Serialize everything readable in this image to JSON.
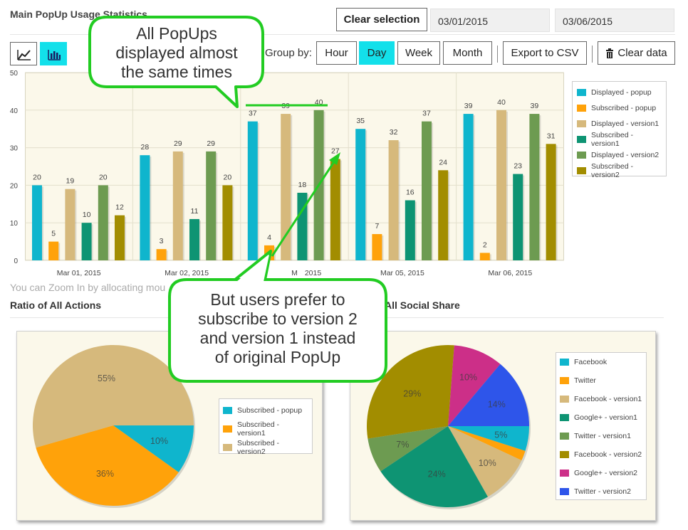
{
  "header": {
    "title": "Main PopUp Usage Statistics",
    "clear_selection": "Clear selection",
    "date_from": "03/01/2015",
    "date_to": "03/06/2015"
  },
  "toolbar": {
    "line_icon": "line-chart-icon",
    "bar_icon": "bar-chart-icon",
    "group_by_label": "Group by:",
    "groups": [
      "Hour",
      "Day",
      "Week",
      "Month"
    ],
    "active_group": "Day",
    "export_csv": "Export to CSV",
    "clear_data": "Clear data",
    "trash_icon": "trash-icon"
  },
  "hint": "You can Zoom In by allocating mou",
  "sections": {
    "ratio_title": "Ratio of All Actions",
    "social_title": "All Social Share"
  },
  "callouts": {
    "top_lines": [
      "All PopUps",
      "displayed almost",
      "the same times"
    ],
    "bottom_lines": [
      "But users prefer to",
      "subscribe to version 2",
      "and version 1 instead",
      "of original PopUp"
    ]
  },
  "colors": {
    "accent": "#13e0ea",
    "callout_border": "#22cc22",
    "plot_bg": "#fbf8ea"
  },
  "chart_data": [
    {
      "type": "bar",
      "categories": [
        "Mar 01, 2015",
        "Mar 02, 2015",
        "M",
        "Mar 05, 2015",
        "Mar 06, 2015"
      ],
      "category_tail": [
        "",
        "",
        "2015",
        "",
        ""
      ],
      "ylim": [
        0,
        50
      ],
      "yticks": [
        0,
        10,
        20,
        30,
        40,
        50
      ],
      "grid": true,
      "legend_position": "right",
      "series": [
        {
          "name": "Displayed - popup",
          "color": "#0fb5cd",
          "values": [
            20,
            28,
            37,
            35,
            39
          ]
        },
        {
          "name": "Subscribed - popup",
          "color": "#ffa20a",
          "values": [
            5,
            3,
            4,
            7,
            2
          ]
        },
        {
          "name": "Displayed - version1",
          "color": "#d6b97c",
          "values": [
            19,
            29,
            39,
            32,
            40
          ]
        },
        {
          "name": "Subscribed - version1",
          "color": "#0e9473",
          "values": [
            10,
            11,
            18,
            16,
            23
          ]
        },
        {
          "name": "Displayed - version2",
          "color": "#6d9b51",
          "values": [
            20,
            29,
            40,
            37,
            39
          ]
        },
        {
          "name": "Subscribed - version2",
          "color": "#a28d00",
          "values": [
            12,
            20,
            27,
            24,
            31
          ]
        }
      ]
    },
    {
      "type": "pie",
      "legend_position": "right",
      "slices": [
        {
          "name": "Subscribed - popup",
          "color": "#0fb5cd",
          "value": 10,
          "label": "10%"
        },
        {
          "name": "Subscribed - version1",
          "color": "#ffa20a",
          "value": 36,
          "label": "36%"
        },
        {
          "name": "Subscribed - version2",
          "color": "#d6b97c",
          "value": 55,
          "label": "55%"
        }
      ]
    },
    {
      "type": "pie",
      "legend_position": "right",
      "slices": [
        {
          "name": "Facebook",
          "color": "#0fb5cd",
          "value": 5,
          "label": "5%"
        },
        {
          "name": "Twitter",
          "color": "#ffa20a",
          "value": 2,
          "label": ""
        },
        {
          "name": "Facebook - version1",
          "color": "#d6b97c",
          "value": 10,
          "label": "10%"
        },
        {
          "name": "Google+ - version1",
          "color": "#0e9473",
          "value": 24,
          "label": "24%"
        },
        {
          "name": "Twitter - version1",
          "color": "#6d9b51",
          "value": 7,
          "label": "7%"
        },
        {
          "name": "Facebook - version2",
          "color": "#a28d00",
          "value": 29,
          "label": "29%"
        },
        {
          "name": "Google+ - version2",
          "color": "#cc2f88",
          "value": 10,
          "label": "10%"
        },
        {
          "name": "Twitter - version2",
          "color": "#2e55ea",
          "value": 14,
          "label": "14%"
        }
      ]
    }
  ]
}
